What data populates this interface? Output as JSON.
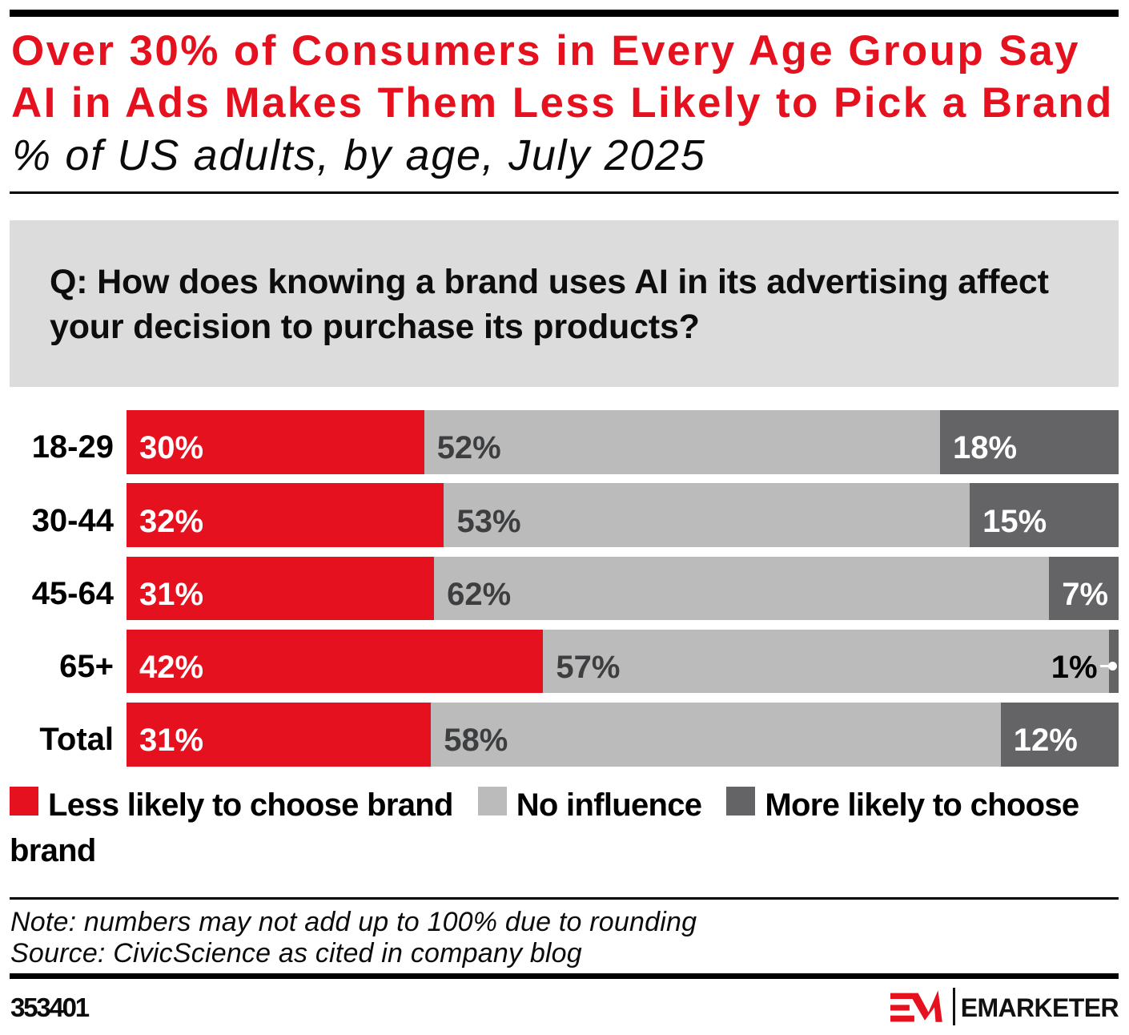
{
  "title": "Over 30% of Consumers in Every Age Group Say AI in Ads Makes Them Less Likely to Pick a Brand",
  "subtitle": "% of US adults, by age, July 2025",
  "question": "Q: How does knowing a brand uses AI in its advertising affect your decision to purchase its products?",
  "chart_data": {
    "type": "bar",
    "orientation": "horizontal",
    "stacked": true,
    "categories": [
      "18-29",
      "30-44",
      "45-64",
      "65+",
      "Total"
    ],
    "series": [
      {
        "name": "Less likely to choose brand",
        "color": "#e6111e",
        "values": [
          30,
          32,
          31,
          42,
          31
        ]
      },
      {
        "name": "No influence",
        "color": "#bbbbbb",
        "values": [
          52,
          53,
          62,
          57,
          58
        ]
      },
      {
        "name": "More likely to choose brand",
        "color": "#646467",
        "values": [
          18,
          15,
          7,
          1,
          12
        ]
      }
    ],
    "value_suffix": "%",
    "xlim": [
      0,
      100
    ],
    "label_colors": [
      "#ffffff",
      "#3d3e40",
      "#ffffff"
    ],
    "small_label_color": "#000000"
  },
  "legend": [
    {
      "label": "Less likely to choose brand",
      "color": "#e6111e"
    },
    {
      "label": "No influence",
      "color": "#bbbbbb"
    },
    {
      "label": "More likely to choose brand",
      "color": "#646467"
    }
  ],
  "note": "Note: numbers may not add up to 100% due to rounding",
  "source": "Source: CivicScience as cited in company blog",
  "footer": {
    "chart_id": "353401",
    "brand": "EMARKETER"
  },
  "colors": {
    "title": "#e6111e",
    "question_box": "#dcdcdc",
    "rules": "#000000"
  }
}
